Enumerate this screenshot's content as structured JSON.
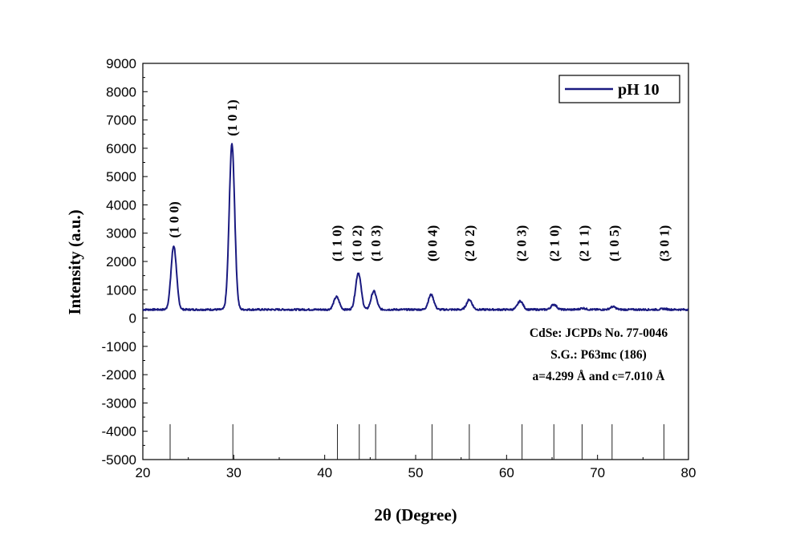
{
  "chart_data": {
    "type": "line",
    "xlabel": "2θ (Degree)",
    "ylabel": "Intensity (a.u.)",
    "xlim": [
      20,
      80
    ],
    "ylim": [
      -5000,
      9000
    ],
    "xticks": [
      20,
      30,
      40,
      50,
      60,
      70,
      80
    ],
    "yticks": [
      9000,
      8000,
      7000,
      6000,
      5000,
      4000,
      3000,
      2000,
      1000,
      0,
      -1000,
      -2000,
      -3000,
      -4000,
      -5000
    ],
    "grid": false,
    "legend_position": "top-right",
    "series": [
      {
        "name": "pH 10",
        "color": "#1a1a80",
        "baseline": 300,
        "peaks": [
          {
            "x": 23.4,
            "y": 2550
          },
          {
            "x": 29.8,
            "y": 6150
          },
          {
            "x": 41.3,
            "y": 750
          },
          {
            "x": 43.7,
            "y": 1600
          },
          {
            "x": 45.4,
            "y": 950
          },
          {
            "x": 51.7,
            "y": 830
          },
          {
            "x": 55.9,
            "y": 650
          },
          {
            "x": 61.5,
            "y": 600
          },
          {
            "x": 65.2,
            "y": 480
          },
          {
            "x": 68.4,
            "y": 350
          },
          {
            "x": 71.7,
            "y": 400
          },
          {
            "x": 77.3,
            "y": 330
          }
        ]
      }
    ],
    "reference_lines": {
      "name": "CdSe: JCPDs No. 77-0046",
      "x": [
        23.0,
        29.9,
        41.4,
        43.8,
        45.6,
        51.8,
        55.9,
        61.7,
        65.2,
        68.3,
        71.6,
        77.3
      ],
      "y_top": -3750,
      "y_bottom": -5000
    },
    "peak_labels": [
      {
        "text": "(1 0 0)",
        "x": 23.4
      },
      {
        "text": "(1 0 1)",
        "x": 29.8
      },
      {
        "text": "(1 1 0)",
        "x": 41.3
      },
      {
        "text": "(1 0 2)",
        "x": 43.5
      },
      {
        "text": "(1 0 3)",
        "x": 45.6
      },
      {
        "text": "(0 0 4)",
        "x": 51.8
      },
      {
        "text": "(2 0 2)",
        "x": 55.9
      },
      {
        "text": "(2 0 3)",
        "x": 61.6
      },
      {
        "text": "(2 1 0)",
        "x": 65.2
      },
      {
        "text": "(2 1 1)",
        "x": 68.5
      },
      {
        "text": "(1 0 5)",
        "x": 71.8
      },
      {
        "text": "(3 0 1)",
        "x": 77.3
      }
    ],
    "annotations": [
      "CdSe: JCPDs No. 77-0046",
      "S.G.: P63mc (186)",
      "a=4.299 Å and c=7.010 Å"
    ]
  }
}
